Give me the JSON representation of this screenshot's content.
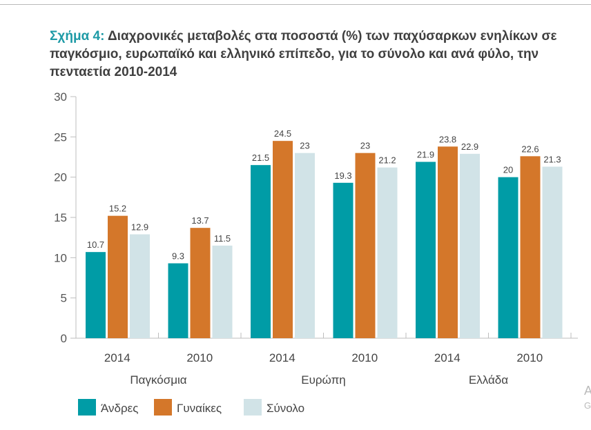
{
  "title": {
    "prefix": "Σχήμα 4:",
    "text": " Διαχρονικές μεταβολές στα ποσοστά (%) των παχύσαρκων ενηλίκων σε παγκόσμιο, ευρωπαϊκό και ελληνικό επίπεδο, για το σύνολο και ανά φύλο, την πενταετία 2010-2014"
  },
  "edge_fragments": [
    "Α",
    "G"
  ],
  "chart_data": {
    "type": "bar",
    "title": "Σχήμα 4: Διαχρονικές μεταβολές στα ποσοστά (%) των παχύσαρκων ενηλίκων σε παγκόσμιο, ευρωπαϊκό και ελληνικό επίπεδο, για το σύνολο και ανά φύλο, την πενταετία 2010-2014",
    "categories": [
      "2014",
      "2010",
      "2014",
      "2010",
      "2014",
      "2010"
    ],
    "groups": [
      {
        "label": "Παγκόσμια",
        "span": [
          0,
          1
        ]
      },
      {
        "label": "Ευρώπη",
        "span": [
          2,
          3
        ]
      },
      {
        "label": "Ελλάδα",
        "span": [
          4,
          5
        ]
      }
    ],
    "series": [
      {
        "name": "Άνδρες",
        "color": "#009ca6",
        "values": [
          10.7,
          9.3,
          21.5,
          19.3,
          21.9,
          20
        ]
      },
      {
        "name": "Γυναίκες",
        "color": "#d4772a",
        "values": [
          15.2,
          13.7,
          24.5,
          23,
          23.8,
          22.6
        ]
      },
      {
        "name": "Σύνολο",
        "color": "#d1e3e7",
        "values": [
          12.9,
          11.5,
          23,
          21.2,
          22.9,
          21.3
        ]
      }
    ],
    "ylim": [
      0,
      30
    ],
    "yticks": [
      0,
      5,
      10,
      15,
      20,
      25,
      30
    ],
    "grid": false,
    "legend": "bottom-left"
  }
}
